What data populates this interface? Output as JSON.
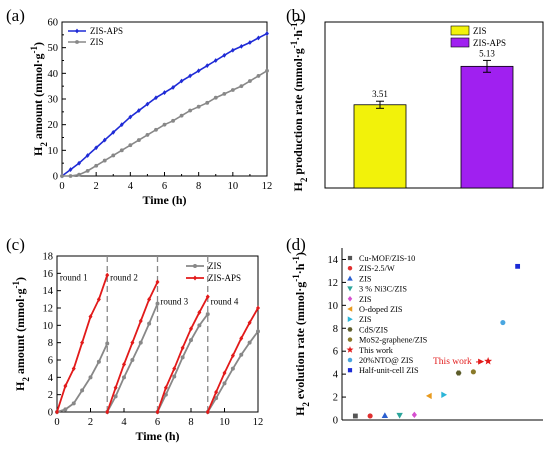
{
  "chart_data": [
    {
      "panel": "(a)",
      "type": "line",
      "xlabel": "Time (h)",
      "ylabel": "H2 amount (mmol·g-1)",
      "ylabel_parts": {
        "main": "H",
        "sub": "2",
        "rest": " amount (mmol·g",
        "sup": "-1",
        "close": ")"
      },
      "xlim": [
        0,
        12
      ],
      "ylim": [
        0,
        60
      ],
      "xticks": [
        "0",
        "2",
        "4",
        "6",
        "8",
        "10",
        "12"
      ],
      "yticks": [
        "0",
        "10",
        "20",
        "30",
        "40",
        "50",
        "60"
      ],
      "legend_position": "top-left",
      "series": [
        {
          "name": "ZIS-APS",
          "color": "#1f2bd6",
          "marker": "diamond",
          "x": [
            0,
            0.5,
            1,
            1.5,
            2,
            2.5,
            3,
            3.5,
            4,
            4.5,
            5,
            5.5,
            6,
            6.5,
            7,
            7.5,
            8,
            8.5,
            9,
            9.5,
            10,
            10.5,
            11,
            11.5,
            12
          ],
          "y": [
            0,
            2.5,
            5,
            8,
            11,
            14,
            17,
            20,
            23,
            25.5,
            28,
            30.5,
            32.5,
            34.5,
            37,
            39,
            41,
            43,
            45,
            47,
            49,
            50.5,
            52,
            53.8,
            55.5
          ]
        },
        {
          "name": "ZIS",
          "color": "#888888",
          "marker": "circle",
          "x": [
            0,
            0.5,
            1,
            1.5,
            2,
            2.5,
            3,
            3.5,
            4,
            4.5,
            5,
            5.5,
            6,
            6.5,
            7,
            7.5,
            8,
            8.5,
            9,
            9.5,
            10,
            10.5,
            11,
            11.5,
            12
          ],
          "y": [
            0,
            0,
            0.5,
            2,
            4,
            6,
            8,
            10,
            12,
            14,
            16,
            18,
            20,
            21.5,
            23.5,
            25.5,
            27,
            28.5,
            30.5,
            32,
            33.5,
            35,
            37,
            39,
            41
          ]
        }
      ]
    },
    {
      "panel": "(b)",
      "type": "bar",
      "ylabel": "H2 production rate (mmol·g-1·h-1)",
      "ylabel_parts": {
        "main": "H",
        "sub": "2",
        "rest": " production rate (mmol·g",
        "sup": "-1",
        "mid": "·h",
        "sup2": "-1",
        "close": ")"
      },
      "categories": [
        "ZIS",
        "ZIS-APS"
      ],
      "values": [
        3.51,
        5.13
      ],
      "value_labels": [
        "3.51",
        "5.13"
      ],
      "errors": [
        0.15,
        0.25
      ],
      "colors": [
        "#f2f20a",
        "#a020f0"
      ],
      "ylim": [
        0,
        7
      ],
      "legend_position": "top-right"
    },
    {
      "panel": "(c)",
      "type": "line",
      "xlabel": "Time (h)",
      "ylabel": "H2 amount (mmol·g-1)",
      "ylabel_parts": {
        "main": "H",
        "sub": "2",
        "rest": " amount (mmol·g",
        "sup": "-1",
        "close": ")"
      },
      "xlim": [
        0,
        12
      ],
      "ylim": [
        0,
        18
      ],
      "xticks": [
        "0",
        "2",
        "4",
        "6",
        "8",
        "10",
        "12"
      ],
      "yticks": [
        "0",
        "2",
        "4",
        "6",
        "8",
        "10",
        "12",
        "14",
        "16",
        "18"
      ],
      "legend_position": "top-right",
      "round_labels": [
        "round 1",
        "round 2",
        "round 3",
        "round 4"
      ],
      "round_label_x": [
        1.0,
        4.0,
        7.0,
        10.0
      ],
      "round_label_y": [
        15.2,
        15.2,
        12.4,
        12.4
      ],
      "dividers": [
        3,
        6,
        9
      ],
      "series": [
        {
          "name": "ZIS",
          "color": "#888888",
          "marker": "circle",
          "segments": [
            {
              "x": [
                0,
                0.5,
                1,
                1.5,
                2,
                2.5,
                3
              ],
              "y": [
                0,
                0.3,
                1,
                2.5,
                4,
                5.8,
                7.9
              ]
            },
            {
              "x": [
                3,
                3.5,
                4,
                4.5,
                5,
                5.5,
                6
              ],
              "y": [
                0,
                1.8,
                4,
                6,
                8,
                10.2,
                12.5
              ]
            },
            {
              "x": [
                6,
                6.5,
                7,
                7.5,
                8,
                8.5,
                9
              ],
              "y": [
                0,
                2,
                4.1,
                6.3,
                8.3,
                10,
                11.3
              ]
            },
            {
              "x": [
                9,
                9.5,
                10,
                10.5,
                11,
                11.5,
                12
              ],
              "y": [
                0,
                1.6,
                3.3,
                5,
                6.6,
                8,
                9.3
              ]
            }
          ]
        },
        {
          "name": "ZIS-APS",
          "color": "#e21a1a",
          "marker": "diamond",
          "segments": [
            {
              "x": [
                0,
                0.5,
                1,
                1.5,
                2,
                2.5,
                3
              ],
              "y": [
                0,
                3,
                5,
                8,
                11,
                13,
                15.8
              ]
            },
            {
              "x": [
                3,
                3.5,
                4,
                4.5,
                5,
                5.5,
                6
              ],
              "y": [
                0,
                2.8,
                5.5,
                8,
                10.5,
                13,
                15
              ]
            },
            {
              "x": [
                6,
                6.5,
                7,
                7.5,
                8,
                8.5,
                9
              ],
              "y": [
                0,
                2.8,
                5,
                7.4,
                9.6,
                11.5,
                13.3
              ]
            },
            {
              "x": [
                9,
                9.5,
                10,
                10.5,
                11,
                11.5,
                12
              ],
              "y": [
                0,
                2.3,
                4.5,
                6.5,
                8.5,
                10.3,
                12
              ]
            }
          ]
        }
      ]
    },
    {
      "panel": "(d)",
      "type": "scatter",
      "ylabel": "H2 evolution rate (mmol·g-1·h-1)",
      "ylabel_parts": {
        "main": "H",
        "sub": "2",
        "rest": " evolution rate (mmol·g",
        "sup": "-1",
        "mid": "·h",
        "sup2": "-1",
        "close": ")"
      },
      "ylim": [
        0,
        15
      ],
      "yticks": [
        "0",
        "2",
        "4",
        "6",
        "8",
        "10",
        "12",
        "14"
      ],
      "legend_position": "upper-left",
      "annotation": "This work",
      "points": [
        {
          "name": "Cu-MOF/ZIS-10",
          "x": 1,
          "y": 0.35,
          "color": "#555555",
          "marker": "square"
        },
        {
          "name": "ZIS-2.5/W",
          "x": 2,
          "y": 0.35,
          "color": "#e03030",
          "marker": "circle"
        },
        {
          "name": "ZIS",
          "x": 3,
          "y": 0.4,
          "color": "#2a5fd0",
          "marker": "triangle-up"
        },
        {
          "name": "3 % Ni3C/ZIS",
          "x": 4,
          "y": 0.4,
          "color": "#2ba59b",
          "marker": "triangle-down"
        },
        {
          "name": "ZIS",
          "x": 5,
          "y": 0.45,
          "color": "#d64fcf",
          "marker": "diamond"
        },
        {
          "name": "O-doped ZIS",
          "x": 6,
          "y": 2.1,
          "color": "#e89a1e",
          "marker": "triangle-left"
        },
        {
          "name": "ZIS",
          "x": 7,
          "y": 2.2,
          "color": "#2bb5d8",
          "marker": "triangle-right"
        },
        {
          "name": "CdS/ZIS",
          "x": 8,
          "y": 4.1,
          "color": "#5c5c2a",
          "marker": "hexagon"
        },
        {
          "name": "MoS2-graphene/ZIS",
          "x": 9,
          "y": 4.2,
          "color": "#8a7a2a",
          "marker": "circle"
        },
        {
          "name": "This work",
          "x": 10,
          "y": 5.13,
          "color": "#e21a1a",
          "marker": "star"
        },
        {
          "name": "20%NTO@ ZIS",
          "x": 11,
          "y": 8.5,
          "color": "#4aa6e0",
          "marker": "circle"
        },
        {
          "name": "Half-unit-cell ZIS",
          "x": 12,
          "y": 13.4,
          "color": "#1a2ad6",
          "marker": "square"
        }
      ]
    }
  ]
}
